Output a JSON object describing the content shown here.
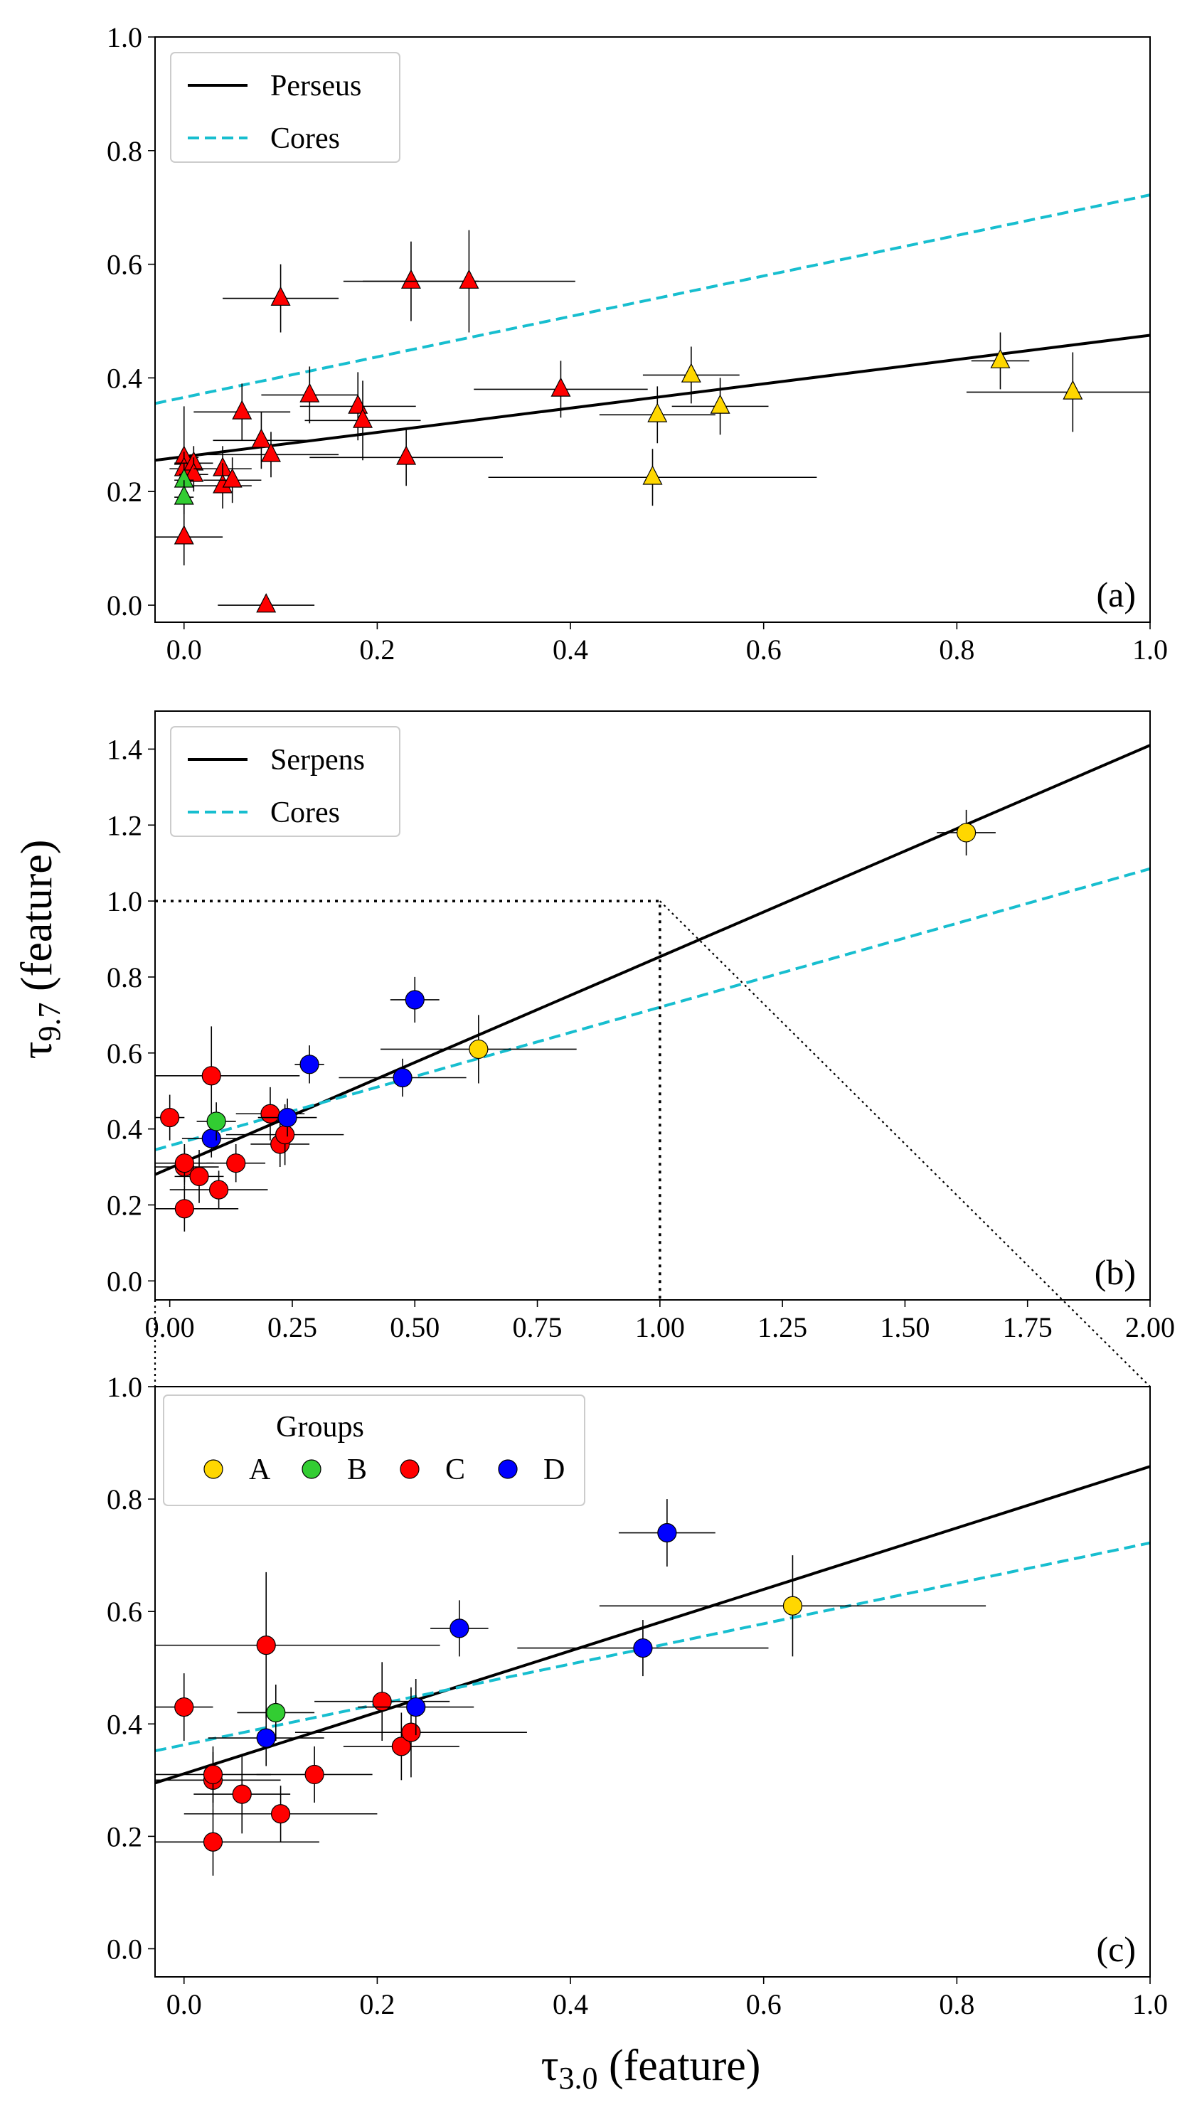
{
  "figure": {
    "y_axis_label": {
      "main": "τ",
      "sub": "9.7",
      "rest": " (feature)"
    },
    "x_axis_label": {
      "main": "τ",
      "sub": "3.0",
      "rest": " (feature)"
    }
  },
  "colors": {
    "group_A": "#FFD700",
    "group_B": "#32CD32",
    "group_C": "#FF0000",
    "group_D": "#0000FF",
    "fit_line": "#000000",
    "cores_line": "#17BECF"
  },
  "chart_data": [
    {
      "type": "scatter",
      "panel": "a",
      "label": "(a)",
      "marker": "triangle",
      "xlim": [
        -0.03,
        1.0
      ],
      "ylim": [
        -0.03,
        1.0
      ],
      "xticks": [
        "0.0",
        "0.2",
        "0.4",
        "0.6",
        "0.8",
        "1.0"
      ],
      "yticks": [
        "0.0",
        "0.2",
        "0.4",
        "0.6",
        "0.8",
        "1.0"
      ],
      "legend": {
        "location": "top-left",
        "entries": [
          "Perseus",
          "Cores"
        ]
      },
      "lines": [
        {
          "name": "Perseus",
          "style": "solid",
          "color": "#000000",
          "x": [
            -0.03,
            1.0
          ],
          "y": [
            0.255,
            0.475
          ]
        },
        {
          "name": "Cores",
          "style": "dashed",
          "color": "#17BECF",
          "x": [
            -0.03,
            1.0
          ],
          "y": [
            0.355,
            0.722
          ]
        }
      ],
      "points": [
        {
          "x": 0.0,
          "y": 0.26,
          "xerr": 0.015,
          "yerr": 0.09,
          "group": "C"
        },
        {
          "x": 0.0,
          "y": 0.24,
          "xerr": 0.015,
          "yerr": 0.03,
          "group": "C"
        },
        {
          "x": 0.01,
          "y": 0.25,
          "xerr": 0.02,
          "yerr": 0.03,
          "group": "C"
        },
        {
          "x": 0.01,
          "y": 0.23,
          "xerr": 0.015,
          "yerr": 0.03,
          "group": "C"
        },
        {
          "x": 0.0,
          "y": 0.12,
          "xerr": 0.04,
          "yerr": 0.05,
          "group": "C"
        },
        {
          "x": 0.0,
          "y": 0.22,
          "xerr": 0.01,
          "yerr": 0.03,
          "group": "B"
        },
        {
          "x": 0.0,
          "y": 0.19,
          "xerr": 0.01,
          "yerr": 0.03,
          "group": "B"
        },
        {
          "x": 0.04,
          "y": 0.24,
          "xerr": 0.03,
          "yerr": 0.04,
          "group": "C"
        },
        {
          "x": 0.04,
          "y": 0.21,
          "xerr": 0.03,
          "yerr": 0.04,
          "group": "C"
        },
        {
          "x": 0.05,
          "y": 0.22,
          "xerr": 0.03,
          "yerr": 0.04,
          "group": "C"
        },
        {
          "x": 0.06,
          "y": 0.34,
          "xerr": 0.05,
          "yerr": 0.05,
          "group": "C"
        },
        {
          "x": 0.08,
          "y": 0.29,
          "xerr": 0.05,
          "yerr": 0.05,
          "group": "C"
        },
        {
          "x": 0.09,
          "y": 0.265,
          "xerr": 0.07,
          "yerr": 0.04,
          "group": "C"
        },
        {
          "x": 0.085,
          "y": 0.0,
          "xerr": 0.05,
          "yerr": 0.0,
          "group": "C"
        },
        {
          "x": 0.1,
          "y": 0.54,
          "xerr": 0.06,
          "yerr": 0.06,
          "group": "C"
        },
        {
          "x": 0.13,
          "y": 0.37,
          "xerr": 0.05,
          "yerr": 0.05,
          "group": "C"
        },
        {
          "x": 0.18,
          "y": 0.35,
          "xerr": 0.06,
          "yerr": 0.06,
          "group": "C"
        },
        {
          "x": 0.185,
          "y": 0.325,
          "xerr": 0.06,
          "yerr": 0.07,
          "group": "C"
        },
        {
          "x": 0.23,
          "y": 0.26,
          "xerr": 0.1,
          "yerr": 0.05,
          "group": "C"
        },
        {
          "x": 0.235,
          "y": 0.57,
          "xerr": 0.07,
          "yerr": 0.07,
          "group": "C"
        },
        {
          "x": 0.295,
          "y": 0.57,
          "xerr": 0.11,
          "yerr": 0.09,
          "group": "C"
        },
        {
          "x": 0.39,
          "y": 0.38,
          "xerr": 0.09,
          "yerr": 0.05,
          "group": "C"
        },
        {
          "x": 0.49,
          "y": 0.335,
          "xerr": 0.06,
          "yerr": 0.05,
          "group": "A"
        },
        {
          "x": 0.485,
          "y": 0.225,
          "xerr": 0.17,
          "yerr": 0.05,
          "group": "A"
        },
        {
          "x": 0.525,
          "y": 0.405,
          "xerr": 0.05,
          "yerr": 0.05,
          "group": "A"
        },
        {
          "x": 0.555,
          "y": 0.35,
          "xerr": 0.05,
          "yerr": 0.05,
          "group": "A"
        },
        {
          "x": 0.845,
          "y": 0.43,
          "xerr": 0.03,
          "yerr": 0.05,
          "group": "A"
        },
        {
          "x": 0.92,
          "y": 0.375,
          "xerr": 0.11,
          "yerr": 0.07,
          "group": "A"
        }
      ]
    },
    {
      "type": "scatter",
      "panel": "b",
      "label": "(b)",
      "marker": "circle",
      "xlim": [
        -0.03,
        2.0
      ],
      "ylim": [
        -0.05,
        1.5
      ],
      "xticks": [
        "0.00",
        "0.25",
        "0.50",
        "0.75",
        "1.00",
        "1.25",
        "1.50",
        "1.75",
        "2.00"
      ],
      "yticks": [
        "0.0",
        "0.2",
        "0.4",
        "0.6",
        "0.8",
        "1.0",
        "1.2",
        "1.4"
      ],
      "legend": {
        "location": "top-left",
        "entries": [
          "Serpens",
          "Cores"
        ]
      },
      "lines": [
        {
          "name": "Serpens",
          "style": "solid",
          "color": "#000000",
          "x": [
            -0.03,
            2.0
          ],
          "y": [
            0.28,
            1.41
          ]
        },
        {
          "name": "Cores",
          "style": "dashed",
          "color": "#17BECF",
          "x": [
            -0.03,
            2.0
          ],
          "y": [
            0.345,
            1.085
          ]
        }
      ],
      "zoom_box": {
        "x": [
          -0.03,
          1.0
        ],
        "y": [
          -0.05,
          1.0
        ]
      },
      "points": [
        {
          "x": 0.03,
          "y": 0.19,
          "xerr": 0.11,
          "yerr": 0.06,
          "group": "C"
        },
        {
          "x": 0.03,
          "y": 0.3,
          "xerr": 0.07,
          "yerr": 0.05,
          "group": "C"
        },
        {
          "x": 0.03,
          "y": 0.31,
          "xerr": 0.06,
          "yerr": 0.05,
          "group": "C"
        },
        {
          "x": 0.06,
          "y": 0.275,
          "xerr": 0.05,
          "yerr": 0.07,
          "group": "C"
        },
        {
          "x": 0.0,
          "y": 0.43,
          "xerr": 0.03,
          "yerr": 0.06,
          "group": "C"
        },
        {
          "x": 0.085,
          "y": 0.54,
          "xerr": 0.18,
          "yerr": 0.13,
          "group": "C"
        },
        {
          "x": 0.085,
          "y": 0.375,
          "xerr": 0.06,
          "yerr": 0.05,
          "group": "D"
        },
        {
          "x": 0.095,
          "y": 0.42,
          "xerr": 0.04,
          "yerr": 0.05,
          "group": "B"
        },
        {
          "x": 0.1,
          "y": 0.24,
          "xerr": 0.1,
          "yerr": 0.05,
          "group": "C"
        },
        {
          "x": 0.135,
          "y": 0.31,
          "xerr": 0.06,
          "yerr": 0.05,
          "group": "C"
        },
        {
          "x": 0.205,
          "y": 0.44,
          "xerr": 0.07,
          "yerr": 0.07,
          "group": "C"
        },
        {
          "x": 0.225,
          "y": 0.36,
          "xerr": 0.06,
          "yerr": 0.06,
          "group": "C"
        },
        {
          "x": 0.235,
          "y": 0.385,
          "xerr": 0.12,
          "yerr": 0.08,
          "group": "C"
        },
        {
          "x": 0.24,
          "y": 0.43,
          "xerr": 0.06,
          "yerr": 0.05,
          "group": "D"
        },
        {
          "x": 0.285,
          "y": 0.57,
          "xerr": 0.03,
          "yerr": 0.05,
          "group": "D"
        },
        {
          "x": 0.475,
          "y": 0.535,
          "xerr": 0.13,
          "yerr": 0.05,
          "group": "D"
        },
        {
          "x": 0.5,
          "y": 0.74,
          "xerr": 0.05,
          "yerr": 0.06,
          "group": "D"
        },
        {
          "x": 0.63,
          "y": 0.61,
          "xerr": 0.2,
          "yerr": 0.09,
          "group": "A"
        },
        {
          "x": 1.625,
          "y": 1.18,
          "xerr": 0.06,
          "yerr": 0.06,
          "group": "A"
        }
      ]
    },
    {
      "type": "scatter",
      "panel": "c",
      "label": "(c)",
      "marker": "circle",
      "xlim": [
        -0.03,
        1.0
      ],
      "ylim": [
        -0.05,
        1.0
      ],
      "xticks": [
        "0.0",
        "0.2",
        "0.4",
        "0.6",
        "0.8",
        "1.0"
      ],
      "yticks": [
        "0.0",
        "0.2",
        "0.4",
        "0.6",
        "0.8",
        "1.0"
      ],
      "legend": {
        "location": "top-left",
        "title": "Groups",
        "entries": [
          "A",
          "B",
          "C",
          "D"
        ]
      },
      "lines": [
        {
          "name": "Serpens",
          "style": "solid",
          "color": "#000000",
          "x": [
            -0.03,
            1.0
          ],
          "y": [
            0.295,
            0.858
          ]
        },
        {
          "name": "Cores",
          "style": "dashed",
          "color": "#17BECF",
          "x": [
            -0.03,
            1.0
          ],
          "y": [
            0.352,
            0.722
          ]
        }
      ],
      "points": [
        {
          "x": 0.03,
          "y": 0.19,
          "xerr": 0.11,
          "yerr": 0.06,
          "group": "C"
        },
        {
          "x": 0.03,
          "y": 0.3,
          "xerr": 0.07,
          "yerr": 0.05,
          "group": "C"
        },
        {
          "x": 0.03,
          "y": 0.31,
          "xerr": 0.06,
          "yerr": 0.05,
          "group": "C"
        },
        {
          "x": 0.06,
          "y": 0.275,
          "xerr": 0.05,
          "yerr": 0.07,
          "group": "C"
        },
        {
          "x": 0.0,
          "y": 0.43,
          "xerr": 0.03,
          "yerr": 0.06,
          "group": "C"
        },
        {
          "x": 0.085,
          "y": 0.54,
          "xerr": 0.18,
          "yerr": 0.13,
          "group": "C"
        },
        {
          "x": 0.085,
          "y": 0.375,
          "xerr": 0.06,
          "yerr": 0.05,
          "group": "D"
        },
        {
          "x": 0.095,
          "y": 0.42,
          "xerr": 0.04,
          "yerr": 0.05,
          "group": "B"
        },
        {
          "x": 0.1,
          "y": 0.24,
          "xerr": 0.1,
          "yerr": 0.05,
          "group": "C"
        },
        {
          "x": 0.135,
          "y": 0.31,
          "xerr": 0.06,
          "yerr": 0.05,
          "group": "C"
        },
        {
          "x": 0.205,
          "y": 0.44,
          "xerr": 0.07,
          "yerr": 0.07,
          "group": "C"
        },
        {
          "x": 0.225,
          "y": 0.36,
          "xerr": 0.06,
          "yerr": 0.06,
          "group": "C"
        },
        {
          "x": 0.235,
          "y": 0.385,
          "xerr": 0.12,
          "yerr": 0.08,
          "group": "C"
        },
        {
          "x": 0.24,
          "y": 0.43,
          "xerr": 0.06,
          "yerr": 0.05,
          "group": "D"
        },
        {
          "x": 0.285,
          "y": 0.57,
          "xerr": 0.03,
          "yerr": 0.05,
          "group": "D"
        },
        {
          "x": 0.475,
          "y": 0.535,
          "xerr": 0.13,
          "yerr": 0.05,
          "group": "D"
        },
        {
          "x": 0.5,
          "y": 0.74,
          "xerr": 0.05,
          "yerr": 0.06,
          "group": "D"
        },
        {
          "x": 0.63,
          "y": 0.61,
          "xerr": 0.2,
          "yerr": 0.09,
          "group": "A"
        }
      ]
    }
  ]
}
